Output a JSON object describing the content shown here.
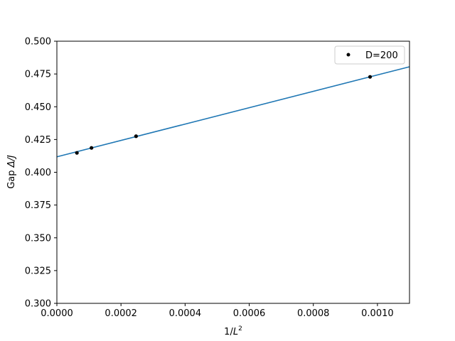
{
  "chart_data": {
    "type": "scatter",
    "title": "",
    "xlabel_prefix": "1/",
    "xlabel_var": "L",
    "xlabel_sup": "2",
    "ylabel_prefix": "Gap ",
    "ylabel_math": "Δ/J",
    "xlim": [
      0,
      0.0011
    ],
    "ylim": [
      0.3,
      0.5
    ],
    "x_ticks": [
      0,
      0.0002,
      0.0004,
      0.0006,
      0.0008,
      0.001
    ],
    "x_tick_labels": [
      "0.0000",
      "0.0002",
      "0.0004",
      "0.0006",
      "0.0008",
      "0.0010"
    ],
    "y_ticks": [
      0.3,
      0.325,
      0.35,
      0.375,
      0.4,
      0.425,
      0.45,
      0.475,
      0.5
    ],
    "y_tick_labels": [
      "0.300",
      "0.325",
      "0.350",
      "0.375",
      "0.400",
      "0.425",
      "0.450",
      "0.475",
      "0.500"
    ],
    "grid": false,
    "legend_position": "top-right",
    "series": [
      {
        "name": "D=200",
        "kind": "points",
        "color": "#000000",
        "x": [
          6.25e-05,
          0.000108,
          0.000247,
          0.000977
        ],
        "y": [
          0.4148,
          0.4186,
          0.4275,
          0.4728
        ]
      },
      {
        "kind": "fit-line",
        "color": "#1f77b4",
        "x": [
          0,
          0.0011
        ],
        "y": [
          0.4118,
          0.4805
        ]
      }
    ]
  }
}
